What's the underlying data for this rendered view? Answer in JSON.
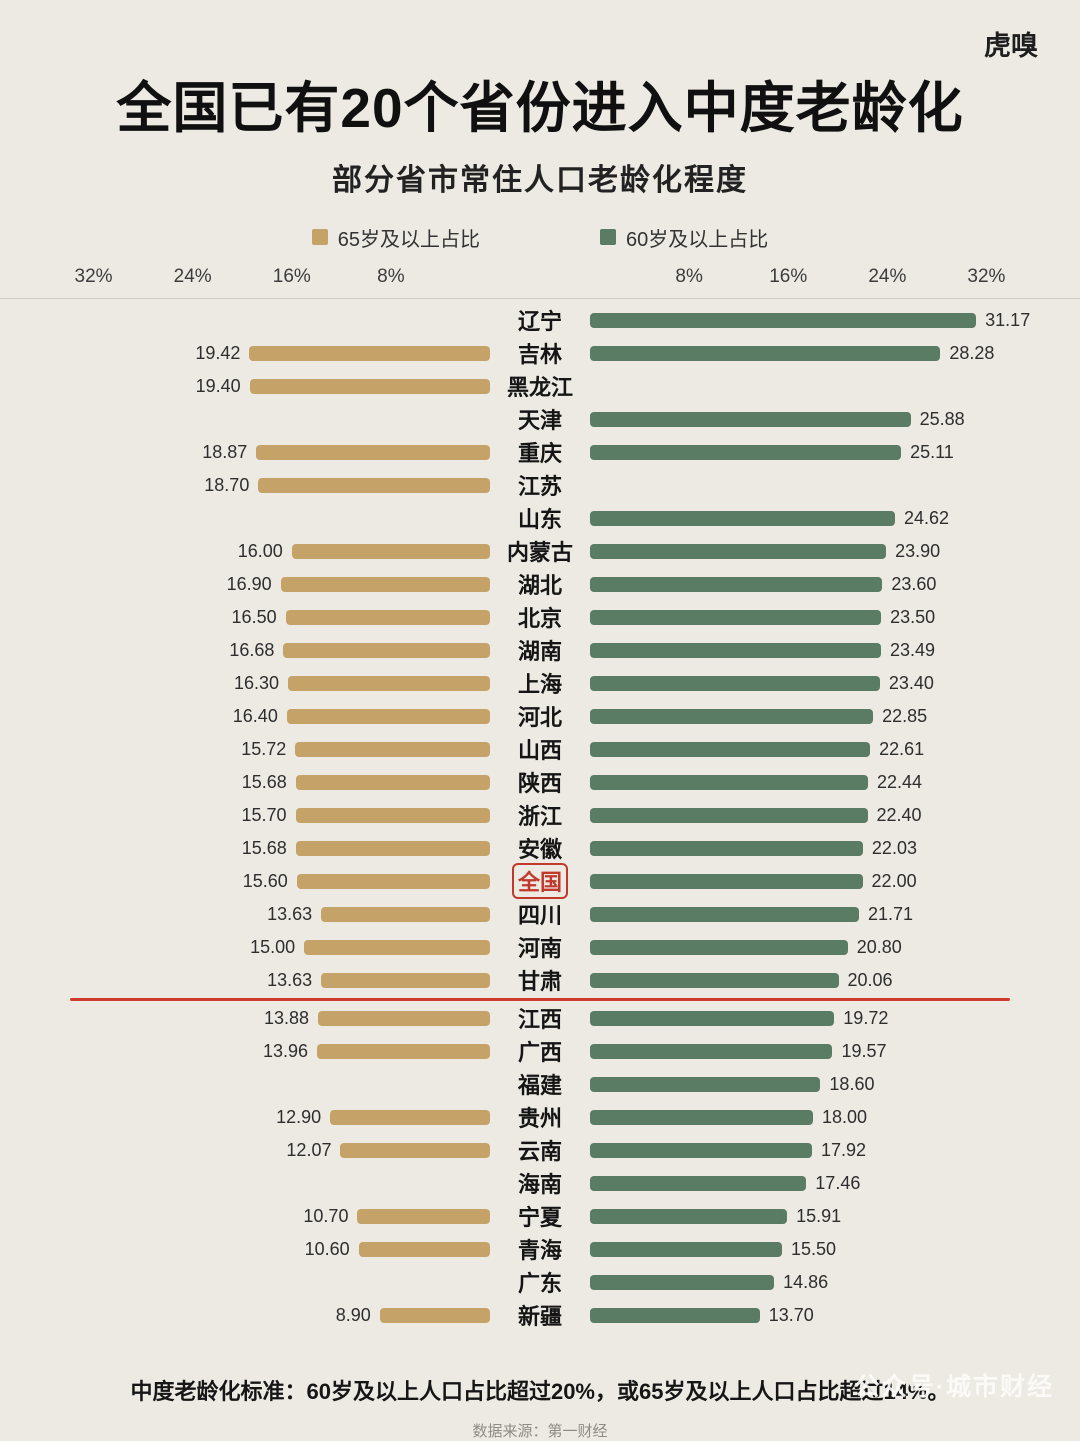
{
  "logo": "虎嗅",
  "header": {
    "title": "全国已有20个省份进入中度老龄化",
    "subtitle": "部分省市常住人口老龄化程度"
  },
  "legend": [
    {
      "label": "65岁及以上占比",
      "color": "#c5a267"
    },
    {
      "label": "60岁及以上占比",
      "color": "#5a7c65"
    }
  ],
  "chart_data": {
    "type": "bar",
    "variant": "tornado",
    "title": "全国已有20个省份进入中度老龄化",
    "subtitle": "部分省市常住人口老龄化程度",
    "axis": {
      "ticks_percent": [
        8,
        16,
        24,
        32
      ],
      "max_percent": 36,
      "left_series": "65岁及以上占比",
      "right_series": "60岁及以上占比",
      "left_tick_labels": [
        "32%",
        "24%",
        "16%",
        "8%"
      ],
      "right_tick_labels": [
        "8%",
        "16%",
        "24%",
        "32%"
      ]
    },
    "rows": [
      {
        "name": "辽宁",
        "v65": null,
        "v60": 31.17
      },
      {
        "name": "吉林",
        "v65": 19.42,
        "v60": 28.28
      },
      {
        "name": "黑龙江",
        "v65": 19.4,
        "v60": null
      },
      {
        "name": "天津",
        "v65": null,
        "v60": 25.88
      },
      {
        "name": "重庆",
        "v65": 18.87,
        "v60": 25.11
      },
      {
        "name": "江苏",
        "v65": 18.7,
        "v60": null
      },
      {
        "name": "山东",
        "v65": null,
        "v60": 24.62
      },
      {
        "name": "内蒙古",
        "v65": 16.0,
        "v60": 23.9
      },
      {
        "name": "湖北",
        "v65": 16.9,
        "v60": 23.6
      },
      {
        "name": "北京",
        "v65": 16.5,
        "v60": 23.5
      },
      {
        "name": "湖南",
        "v65": 16.68,
        "v60": 23.49
      },
      {
        "name": "上海",
        "v65": 16.3,
        "v60": 23.4
      },
      {
        "name": "河北",
        "v65": 16.4,
        "v60": 22.85
      },
      {
        "name": "山西",
        "v65": 15.72,
        "v60": 22.61
      },
      {
        "name": "陕西",
        "v65": 15.68,
        "v60": 22.44
      },
      {
        "name": "浙江",
        "v65": 15.7,
        "v60": 22.4
      },
      {
        "name": "安徽",
        "v65": 15.68,
        "v60": 22.03
      },
      {
        "name": "全国",
        "v65": 15.6,
        "v60": 22.0
      },
      {
        "name": "四川",
        "v65": 13.63,
        "v60": 21.71
      },
      {
        "name": "河南",
        "v65": 15.0,
        "v60": 20.8
      },
      {
        "name": "甘肃",
        "v65": 13.63,
        "v60": 20.06
      },
      {
        "name": "江西",
        "v65": 13.88,
        "v60": 19.72
      },
      {
        "name": "广西",
        "v65": 13.96,
        "v60": 19.57
      },
      {
        "name": "福建",
        "v65": null,
        "v60": 18.6
      },
      {
        "name": "贵州",
        "v65": 12.9,
        "v60": 18.0
      },
      {
        "name": "云南",
        "v65": 12.07,
        "v60": 17.92
      },
      {
        "name": "海南",
        "v65": null,
        "v60": 17.46
      },
      {
        "name": "宁夏",
        "v65": 10.7,
        "v60": 15.91
      },
      {
        "name": "青海",
        "v65": 10.6,
        "v60": 15.5
      },
      {
        "name": "广东",
        "v65": null,
        "v60": 14.86
      },
      {
        "name": "新疆",
        "v65": 8.9,
        "v60": 13.7
      }
    ],
    "highlight_row": "全国",
    "threshold_line_after": "甘肃"
  },
  "footer": {
    "note": "中度老龄化标准：60岁及以上人口占比超过20%，或65岁及以上人口占比超过14%。",
    "source": "数据来源：第一财经",
    "watermark": "公众号·城市财经"
  },
  "colors": {
    "background": "#edeae3",
    "bar_65plus": "#c5a267",
    "bar_60plus": "#5a7c65",
    "highlight": "#c0392b",
    "threshold_line": "#cf3b2f"
  }
}
